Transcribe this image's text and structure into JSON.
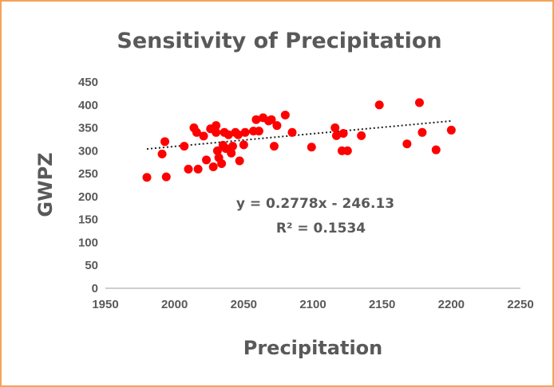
{
  "chart_data": {
    "type": "scatter",
    "title": "Sensitivity of Precipitation",
    "xlabel": "Precipitation",
    "ylabel": "GWPZ",
    "xlim": [
      1950,
      2250
    ],
    "ylim": [
      0,
      450
    ],
    "xticks": [
      "1950",
      "2000",
      "2050",
      "2100",
      "2150",
      "2200",
      "2250"
    ],
    "yticks": [
      "0",
      "50",
      "100",
      "150",
      "200",
      "250",
      "300",
      "350",
      "400",
      "450"
    ],
    "grid": false,
    "marker_color": "#ff0000",
    "trendline": {
      "style": "dotted",
      "color": "#1f1f1f",
      "slope": 0.2778,
      "intercept": -246.13,
      "equation_label": "y = 0.2778x - 246.13",
      "r2_label": "R² = 0.1534"
    },
    "points": [
      [
        1980,
        242
      ],
      [
        1991,
        293
      ],
      [
        1993,
        320
      ],
      [
        1994,
        243
      ],
      [
        2007,
        310
      ],
      [
        2010,
        260
      ],
      [
        2014,
        350
      ],
      [
        2016,
        340
      ],
      [
        2017,
        260
      ],
      [
        2021,
        332
      ],
      [
        2023,
        280
      ],
      [
        2026,
        348
      ],
      [
        2028,
        265
      ],
      [
        2030,
        355
      ],
      [
        2030,
        340
      ],
      [
        2031,
        300
      ],
      [
        2032,
        285
      ],
      [
        2034,
        272
      ],
      [
        2035,
        312
      ],
      [
        2036,
        340
      ],
      [
        2037,
        305
      ],
      [
        2039,
        335
      ],
      [
        2041,
        295
      ],
      [
        2042,
        310
      ],
      [
        2044,
        340
      ],
      [
        2046,
        335
      ],
      [
        2047,
        278
      ],
      [
        2050,
        313
      ],
      [
        2051,
        340
      ],
      [
        2057,
        343
      ],
      [
        2059,
        368
      ],
      [
        2061,
        343
      ],
      [
        2064,
        372
      ],
      [
        2068,
        365
      ],
      [
        2070,
        368
      ],
      [
        2072,
        310
      ],
      [
        2074,
        355
      ],
      [
        2080,
        378
      ],
      [
        2085,
        340
      ],
      [
        2099,
        308
      ],
      [
        2116,
        350
      ],
      [
        2117,
        333
      ],
      [
        2121,
        300
      ],
      [
        2122,
        338
      ],
      [
        2125,
        300
      ],
      [
        2135,
        333
      ],
      [
        2148,
        400
      ],
      [
        2168,
        315
      ],
      [
        2177,
        405
      ],
      [
        2179,
        340
      ],
      [
        2189,
        302
      ],
      [
        2200,
        345
      ]
    ]
  }
}
